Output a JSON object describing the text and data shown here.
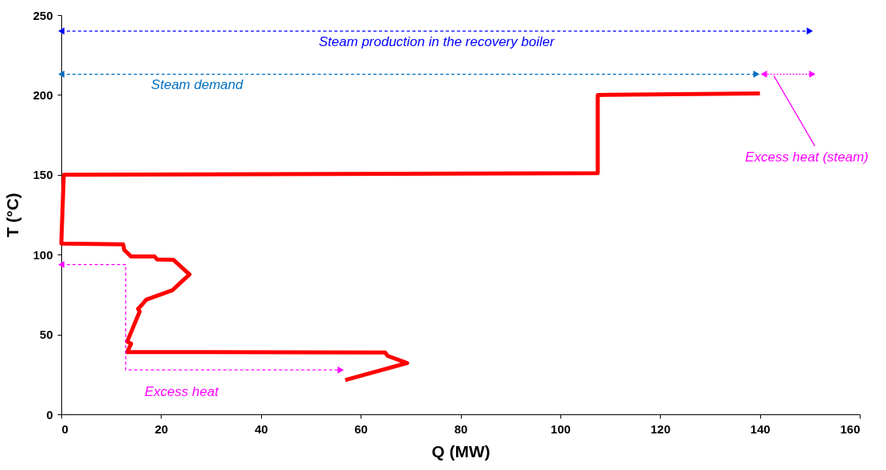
{
  "chart_data": {
    "type": "line",
    "xlabel": "Q (MW)",
    "ylabel": "T (°C)",
    "xlim": [
      0,
      160
    ],
    "xticks": [
      0,
      20,
      40,
      60,
      80,
      100,
      120,
      140,
      160
    ],
    "ylim": [
      0,
      250
    ],
    "yticks": [
      0,
      50,
      100,
      150,
      200,
      250
    ],
    "grid": false,
    "series": [
      {
        "color": "#ff0000",
        "line_style": "solid",
        "marker": "none",
        "x": [
          140,
          107.5,
          107.5,
          0.5,
          0,
          12.4,
          12.6,
          14.0,
          18.7,
          19.2,
          22.5,
          25.7,
          23.9,
          22.3,
          17.0,
          16.2,
          15.4,
          15.7,
          13.2,
          14.0,
          13.2,
          64.9,
          65.4,
          69.3,
          56.9
        ],
        "values": [
          201,
          200,
          151,
          150,
          107,
          106.5,
          103,
          98.8,
          98.8,
          97,
          96.7,
          87.6,
          82.5,
          77.8,
          71.8,
          68.7,
          66.1,
          64.4,
          45.5,
          44.2,
          39.0,
          38.7,
          36.6,
          32.1,
          21.5
        ]
      },
      {
        "color": "#0000ff",
        "line_style": "dashed",
        "marker": "triangle",
        "x": [
          0,
          150
        ],
        "values": [
          240,
          240
        ]
      },
      {
        "color": "#0070c0",
        "line_style": "dashed",
        "marker": "triangle",
        "x": [
          0,
          139.3
        ],
        "values": [
          213,
          213
        ]
      },
      {
        "color": "#ff00ff",
        "line_style": "dotted",
        "marker": "triangle",
        "x": [
          140.8,
          150.5
        ],
        "values": [
          213,
          213
        ]
      },
      {
        "color": "#ff00ff",
        "line_style": "solid",
        "marker": "none",
        "x": [
          142.8,
          151
        ],
        "values": [
          212,
          168
        ]
      },
      {
        "color": "#ff00ff",
        "line_style": "dashed",
        "marker": "triangle",
        "x": [
          0,
          12.9,
          12.9,
          56
        ],
        "values": [
          93.8,
          93.8,
          27.8,
          27.8
        ]
      }
    ],
    "annotations": [
      "Steam production in the recovery boiler",
      "Steam demand",
      "Excess heat (steam)",
      "Excess heat"
    ]
  }
}
